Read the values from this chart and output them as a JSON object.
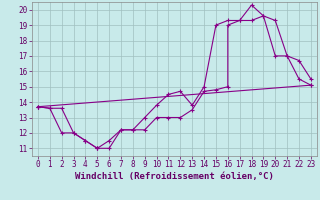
{
  "background_color": "#c8eaea",
  "grid_color": "#a0c0c0",
  "line_color": "#880088",
  "xlabel": "Windchill (Refroidissement éolien,°C)",
  "xlabel_fontsize": 6.5,
  "tick_fontsize": 5.5,
  "xlim": [
    -0.5,
    23.5
  ],
  "ylim": [
    10.5,
    20.5
  ],
  "xticks": [
    0,
    1,
    2,
    3,
    4,
    5,
    6,
    7,
    8,
    9,
    10,
    11,
    12,
    13,
    14,
    15,
    16,
    17,
    18,
    19,
    20,
    21,
    22,
    23
  ],
  "yticks": [
    11,
    12,
    13,
    14,
    15,
    16,
    17,
    18,
    19,
    20
  ],
  "curve1_x": [
    0,
    1,
    2,
    3,
    4,
    5,
    5,
    6,
    7,
    8,
    9,
    10,
    11,
    12,
    13,
    14,
    15,
    16,
    16,
    17,
    18,
    19,
    20,
    21,
    22,
    23
  ],
  "curve1_y": [
    13.7,
    13.6,
    12.0,
    12.0,
    11.5,
    11.0,
    11.0,
    11.5,
    12.2,
    12.2,
    12.2,
    13.0,
    13.0,
    13.0,
    13.5,
    14.7,
    14.8,
    15.0,
    19.0,
    19.3,
    19.3,
    19.6,
    17.0,
    17.0,
    15.5,
    15.1
  ],
  "curve2_x": [
    0,
    1,
    2,
    3,
    4,
    5,
    6,
    7,
    8,
    9,
    10,
    11,
    12,
    13,
    14,
    15,
    16,
    17,
    18,
    19,
    20,
    21,
    22,
    23
  ],
  "curve2_y": [
    13.7,
    13.6,
    13.6,
    12.0,
    11.5,
    11.0,
    11.0,
    12.2,
    12.2,
    13.0,
    13.8,
    14.5,
    14.7,
    13.8,
    15.0,
    19.0,
    19.3,
    19.3,
    20.3,
    19.6,
    19.3,
    17.0,
    16.7,
    15.5
  ],
  "curve3_x": [
    0,
    23
  ],
  "curve3_y": [
    13.7,
    15.1
  ]
}
